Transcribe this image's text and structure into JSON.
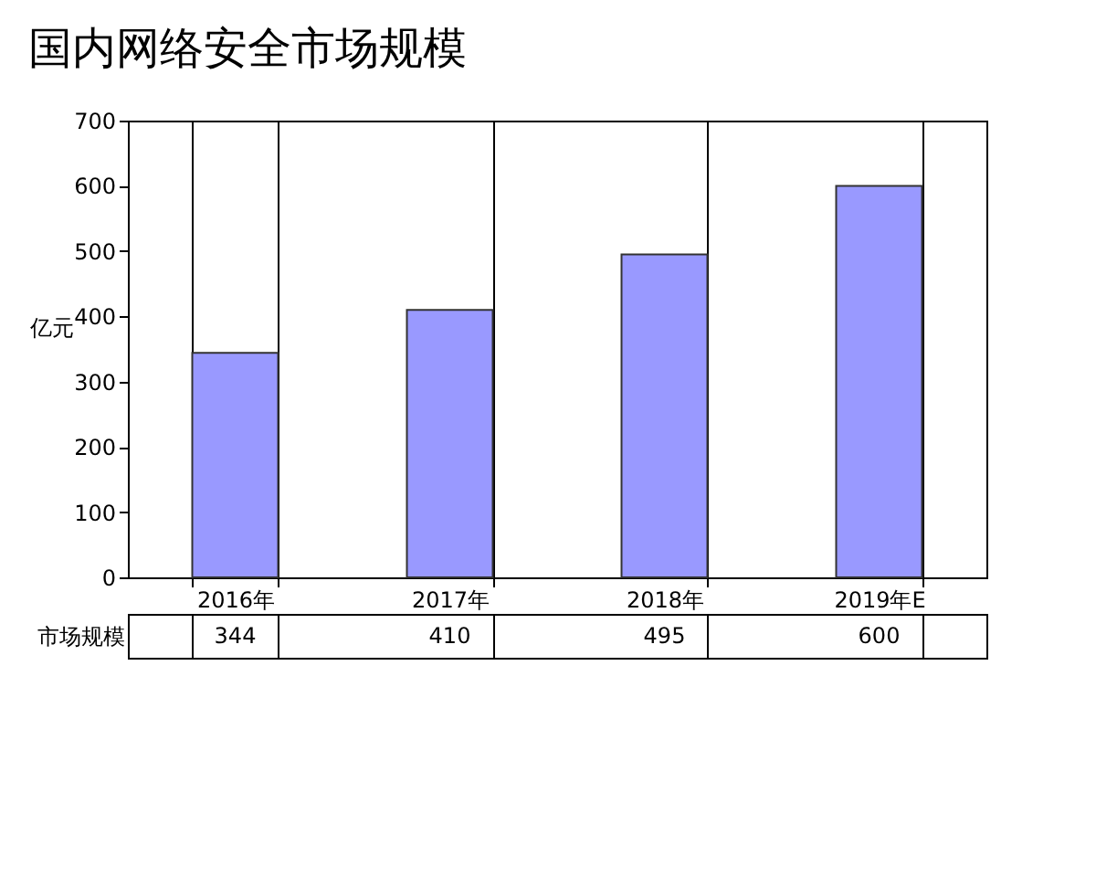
{
  "chart_data": {
    "type": "bar",
    "title": "国内网络安全市场规模",
    "ylabel": "亿元",
    "categories": [
      "2016年",
      "2017年",
      "2018年",
      "2019年E"
    ],
    "series": [
      {
        "name": "市场规模",
        "color": "#9999ff",
        "values": [
          344,
          410,
          495,
          600
        ]
      }
    ],
    "ylim": [
      0,
      700
    ],
    "yticks": [
      0,
      100,
      200,
      300,
      400,
      500,
      600,
      700
    ],
    "data_labels": true
  }
}
